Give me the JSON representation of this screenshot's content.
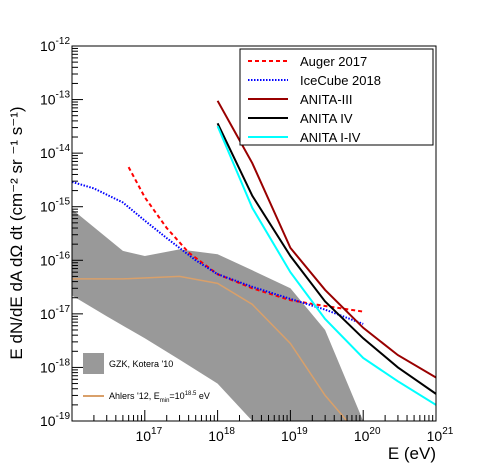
{
  "chart_data": {
    "type": "line",
    "x_log": true,
    "y_log": true,
    "xlim": [
      1e+16,
      1e+21
    ],
    "ylim": [
      1e-19,
      1e-12
    ],
    "xlabel": "E (eV)",
    "ylabel": "E dN/dE dA dΩ dt (cm⁻² sr ⁻¹ s⁻¹)",
    "x_ticks": [
      {
        "value": 1e+17,
        "base": "10",
        "exp": "17"
      },
      {
        "value": 1e+18,
        "base": "10",
        "exp": "18"
      },
      {
        "value": 1e+19,
        "base": "10",
        "exp": "19"
      },
      {
        "value": 1e+20,
        "base": "10",
        "exp": "20"
      },
      {
        "value": 1e+21,
        "base": "10",
        "exp": "21"
      }
    ],
    "y_ticks": [
      {
        "value": 1e-19,
        "base": "10",
        "exp": "-19"
      },
      {
        "value": 1e-18,
        "base": "10",
        "exp": "-18"
      },
      {
        "value": 1e-17,
        "base": "10",
        "exp": "-17"
      },
      {
        "value": 1e-16,
        "base": "10",
        "exp": "-16"
      },
      {
        "value": 1e-15,
        "base": "10",
        "exp": "-15"
      },
      {
        "value": 1e-14,
        "base": "10",
        "exp": "-14"
      },
      {
        "value": 1e-13,
        "base": "10",
        "exp": "-13"
      },
      {
        "value": 1e-12,
        "base": "10",
        "exp": "-12"
      }
    ],
    "legend": {
      "placement": "top-right",
      "entries": [
        {
          "label": "Auger 2017",
          "color": "#ff0000",
          "style": "dashed"
        },
        {
          "label": "IceCube 2018",
          "color": "#0000ff",
          "style": "dotted"
        },
        {
          "label": "ANITA-III",
          "color": "#990000",
          "style": "solid"
        },
        {
          "label": "ANITA IV",
          "color": "#000000",
          "style": "solid"
        },
        {
          "label": "ANITA I-IV",
          "color": "#00ffff",
          "style": "solid"
        }
      ]
    },
    "series": [
      {
        "name": "Auger 2017",
        "color": "#ff0000",
        "style": "dashed",
        "points": [
          [
            6e+16,
            5.5e-15
          ],
          [
            1e+17,
            1.5e-15
          ],
          [
            2e+17,
            4e-16
          ],
          [
            4e+17,
            1.4e-16
          ],
          [
            1e+18,
            5.5e-17
          ],
          [
            3e+18,
            3e-17
          ],
          [
            1e+19,
            1.8e-17
          ],
          [
            3e+19,
            1.4e-17
          ],
          [
            1e+20,
            1.1e-17
          ]
        ]
      },
      {
        "name": "IceCube 2018",
        "color": "#0000ff",
        "style": "dotted",
        "points": [
          [
            1e+16,
            2.9e-15
          ],
          [
            2e+16,
            2.2e-15
          ],
          [
            5e+16,
            1.2e-15
          ],
          [
            1e+17,
            5.5e-16
          ],
          [
            2e+17,
            2.6e-16
          ],
          [
            5e+17,
            1e-16
          ],
          [
            1e+18,
            5.5e-17
          ],
          [
            3e+18,
            3.2e-17
          ],
          [
            1e+19,
            1.9e-17
          ],
          [
            3e+19,
            1.2e-17
          ],
          [
            1e+20,
            6.5e-18
          ]
        ]
      },
      {
        "name": "ANITA-III",
        "color": "#990000",
        "style": "solid",
        "points": [
          [
            1e+18,
            9.5e-14
          ],
          [
            3e+18,
            6.5e-15
          ],
          [
            1e+19,
            1.7e-16
          ],
          [
            3e+19,
            2.8e-17
          ],
          [
            1e+20,
            5.5e-18
          ],
          [
            3e+20,
            1.7e-18
          ],
          [
            1e+21,
            6.5e-19
          ]
        ]
      },
      {
        "name": "ANITA IV",
        "color": "#000000",
        "style": "solid",
        "points": [
          [
            1e+18,
            3.6e-14
          ],
          [
            3e+18,
            1.6e-15
          ],
          [
            1e+19,
            1.2e-16
          ],
          [
            3e+19,
            1.7e-17
          ],
          [
            1e+20,
            3.5e-18
          ],
          [
            3e+20,
            1e-18
          ],
          [
            1e+21,
            3.2e-19
          ]
        ]
      },
      {
        "name": "ANITA I-IV",
        "color": "#00ffff",
        "style": "solid",
        "points": [
          [
            1e+18,
            3.2e-14
          ],
          [
            3e+18,
            9.5e-16
          ],
          [
            1e+19,
            6e-17
          ],
          [
            3e+19,
            8e-18
          ],
          [
            1e+20,
            1.5e-18
          ],
          [
            3e+20,
            5.5e-19
          ],
          [
            1e+21,
            2e-19
          ]
        ]
      },
      {
        "name": "Ahlers '12",
        "color": "#d9a06a",
        "style": "solid",
        "points": [
          [
            1e+16,
            4.5e-17
          ],
          [
            5e+16,
            4.5e-17
          ],
          [
            3e+17,
            5e-17
          ],
          [
            1e+18,
            3.7e-17
          ],
          [
            3e+18,
            1.5e-17
          ],
          [
            1e+19,
            2.8e-18
          ],
          [
            3e+19,
            3e-19
          ],
          [
            6e+19,
            1e-19
          ]
        ]
      }
    ],
    "band": {
      "name": "GZK, Kotera '10",
      "color": "#999999",
      "upper": [
        [
          1e+16,
          9e-16
        ],
        [
          5e+16,
          1.5e-16
        ],
        [
          1e+17,
          1.2e-16
        ],
        [
          3e+17,
          1.6e-16
        ],
        [
          1e+18,
          1.3e-16
        ],
        [
          3e+18,
          6.5e-17
        ],
        [
          1e+19,
          3e-17
        ],
        [
          3e+19,
          5e-18
        ],
        [
          1e+20,
          1e-19
        ]
      ],
      "lower": [
        [
          1e+16,
          2.2e-17
        ],
        [
          3e+16,
          9e-18
        ],
        [
          1e+17,
          3.5e-18
        ],
        [
          3e+17,
          1.4e-18
        ],
        [
          1e+18,
          5e-19
        ],
        [
          3e+18,
          1e-19
        ]
      ]
    },
    "band_legend": {
      "label": "GZK, Kotera '10"
    },
    "ahlers_legend": {
      "prefix": "Ahlers '12, E",
      "sub": "min",
      "mid": "=10",
      "sup": "18.5",
      "suffix": " eV"
    }
  }
}
